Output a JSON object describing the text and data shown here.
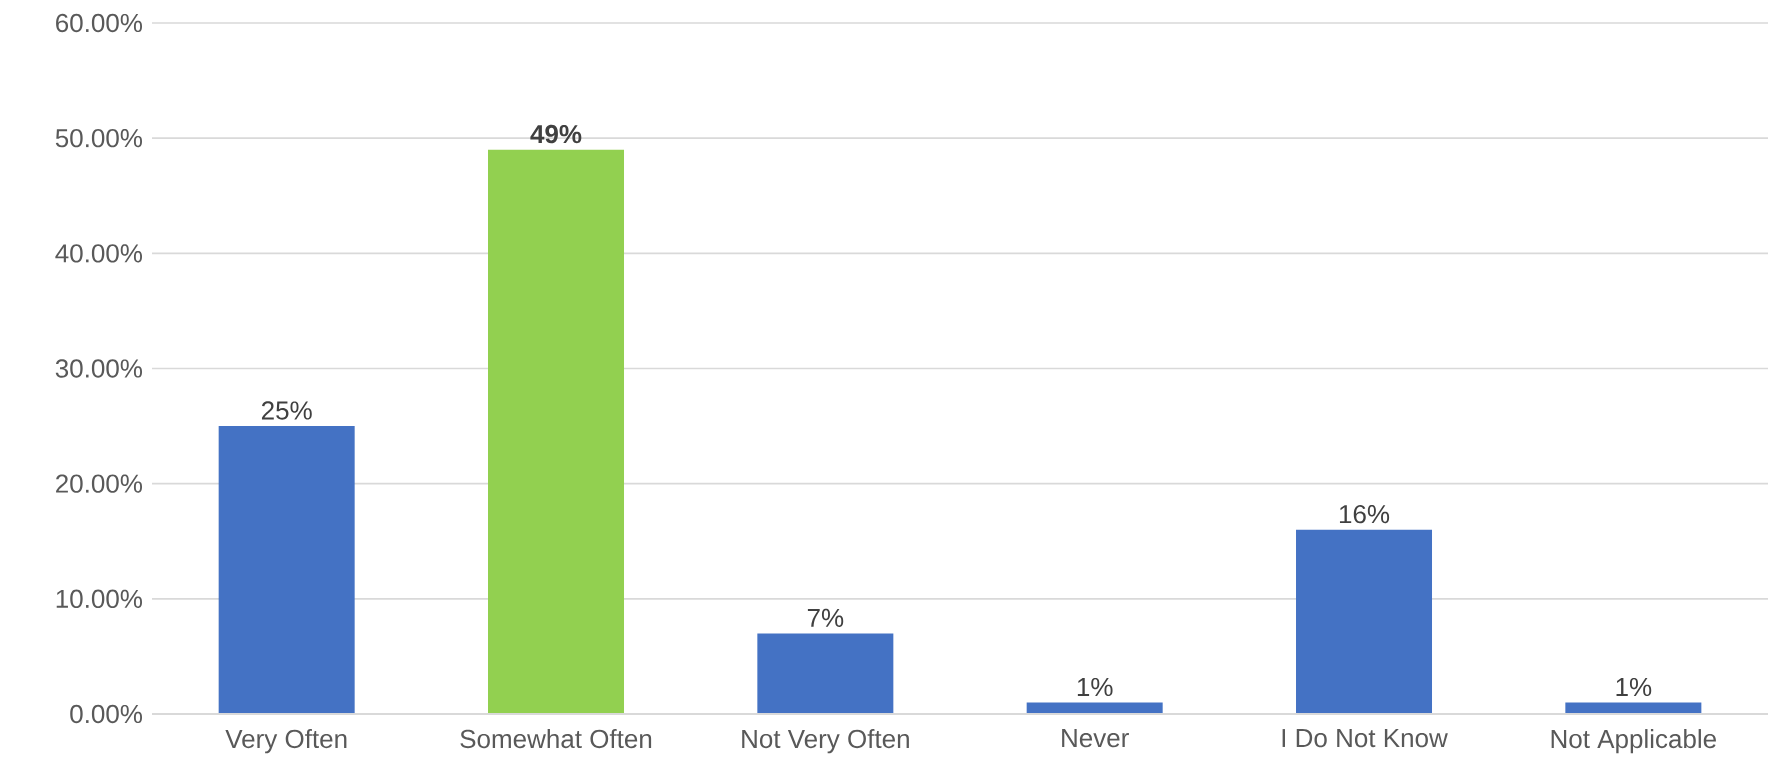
{
  "chart_data": {
    "type": "bar",
    "categories": [
      "Very Often",
      "Somewhat Often",
      "Not Very Often",
      "Never",
      "I Do Not Know",
      "Not Applicable"
    ],
    "values": [
      25,
      49,
      7,
      1,
      16,
      1
    ],
    "colors": [
      "#4472c4",
      "#92d050",
      "#4472c4",
      "#4472c4",
      "#4472c4",
      "#4472c4"
    ],
    "value_labels": [
      "25%",
      "**49%**",
      "7%",
      "1%",
      "16%",
      "1%"
    ],
    "ylim": [
      0,
      60
    ],
    "yticks": [
      {
        "value": 0,
        "label": "0.00%"
      },
      {
        "value": 10,
        "label": "10.00%"
      },
      {
        "value": 20,
        "label": "20.00%"
      },
      {
        "value": 30,
        "label": "30.00%"
      },
      {
        "value": 40,
        "label": "40.00%"
      },
      {
        "value": 50,
        "label": "50.00%"
      },
      {
        "value": 60,
        "label": "60.00%"
      }
    ],
    "grid": "y"
  }
}
